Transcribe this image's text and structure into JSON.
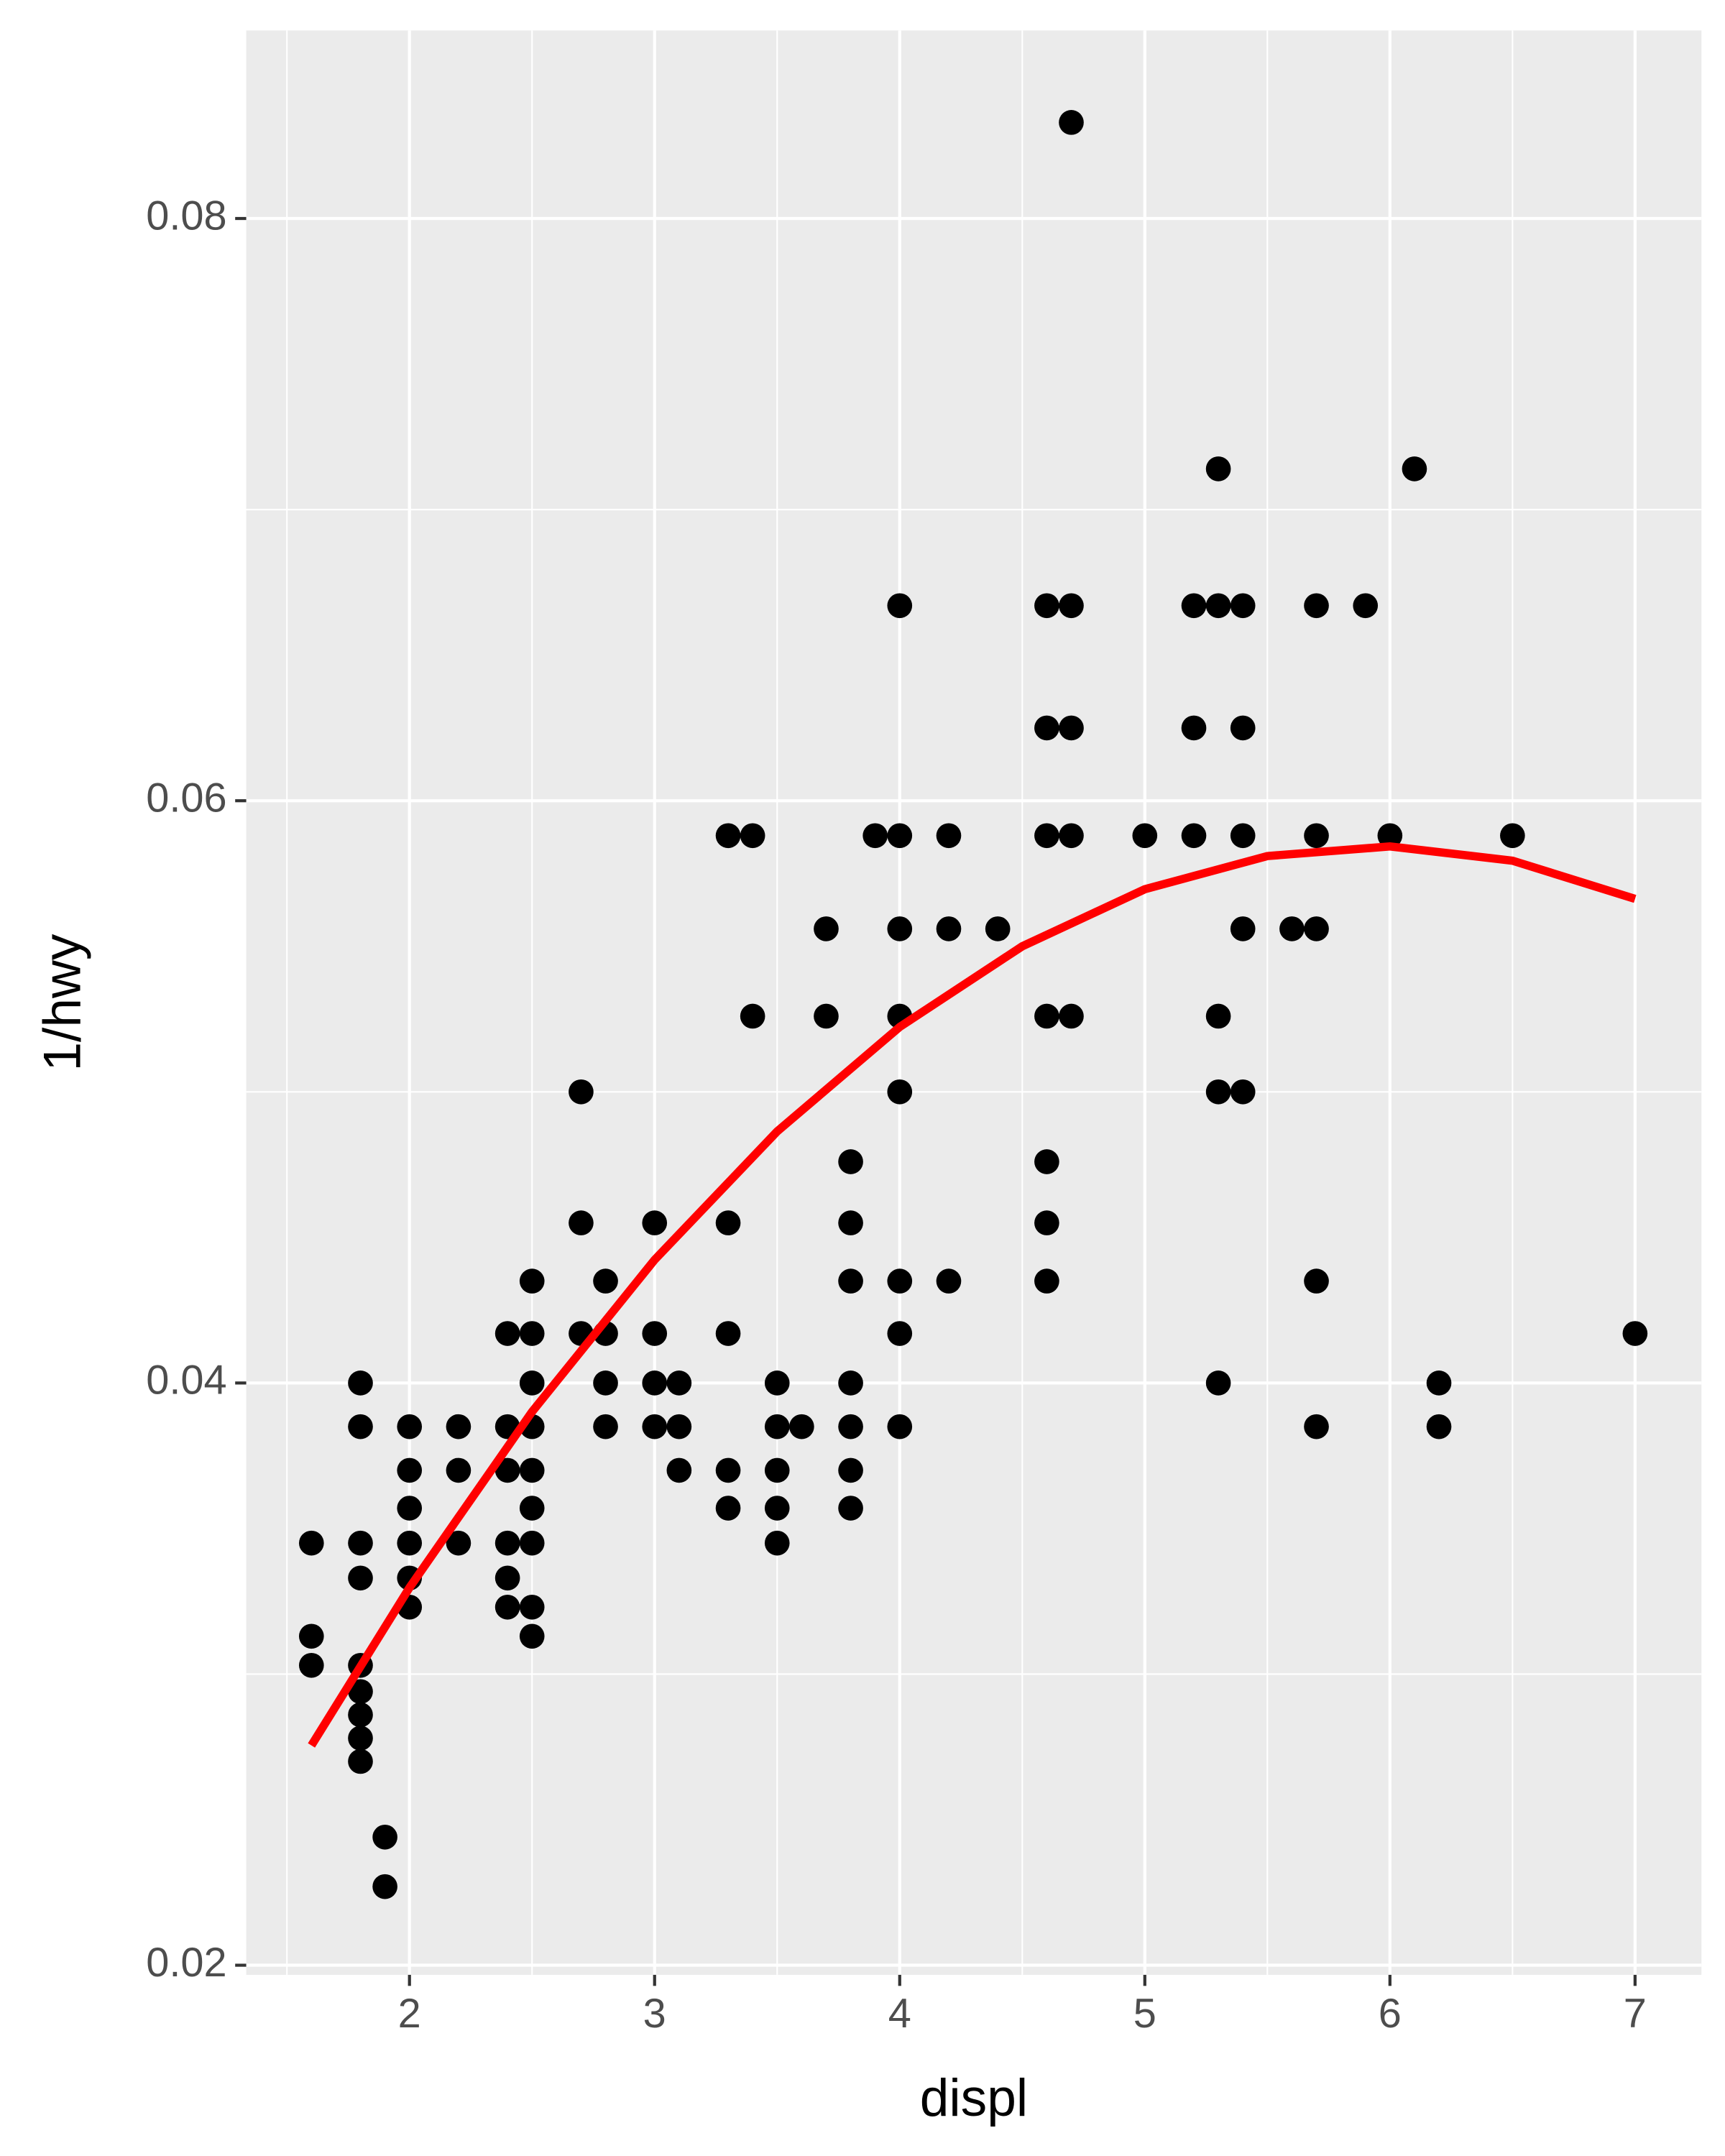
{
  "chart_data": {
    "type": "scatter",
    "x_label": "displ",
    "y_label": "1/hwy",
    "xlim": [
      1.334,
      7.271
    ],
    "ylim": [
      0.01967,
      0.08646
    ],
    "xticks": [
      2,
      3,
      4,
      5,
      6,
      7
    ],
    "yticks": [
      0.02,
      0.04,
      0.06,
      0.08
    ],
    "x_minor_ticks": [
      1.5,
      2.5,
      3.5,
      4.5,
      5.5,
      6.5
    ],
    "y_minor_ticks": [
      0.03,
      0.05,
      0.07
    ],
    "grid": true,
    "series": [
      {
        "color": "#000000",
        "x": [
          4.7,
          5.3,
          6.1,
          4.0,
          4.6,
          4.7,
          5.2,
          5.3,
          5.4,
          5.7,
          5.9,
          4.6,
          4.7,
          5.2,
          5.4,
          3.3,
          3.4,
          3.9,
          4.0,
          4.2,
          4.6,
          4.7,
          5.0,
          5.2,
          5.4,
          5.7,
          6.0,
          6.5,
          3.7,
          4.0,
          4.2,
          4.4,
          5.4,
          5.6,
          5.7,
          3.4,
          3.7,
          4.0,
          4.6,
          4.7,
          5.3,
          2.7,
          4.0,
          5.3,
          5.4,
          3.8,
          4.6,
          2.7,
          3.0,
          3.3,
          3.8,
          4.6,
          2.5,
          2.8,
          3.8,
          4.0,
          4.2,
          4.6,
          5.7,
          2.4,
          2.5,
          2.7,
          2.8,
          3.0,
          3.3,
          4.0,
          7.0,
          1.8,
          2.5,
          2.8,
          3.0,
          3.1,
          3.5,
          3.8,
          5.3,
          6.2,
          1.8,
          2.0,
          2.2,
          2.4,
          2.5,
          2.8,
          3.0,
          3.1,
          3.5,
          3.6,
          3.8,
          4.0,
          5.7,
          6.2,
          2.0,
          2.2,
          2.4,
          2.5,
          3.1,
          3.3,
          3.5,
          3.8,
          2.0,
          2.5,
          3.3,
          3.5,
          3.8,
          1.6,
          1.8,
          2.0,
          2.2,
          2.4,
          2.5,
          3.5,
          1.8,
          2.0,
          2.4,
          2.0,
          2.4,
          2.5,
          1.6,
          2.5,
          1.6,
          1.8,
          1.8,
          1.8,
          1.8,
          1.8,
          1.9,
          1.9
        ],
        "values": [
          0.0833,
          0.0714,
          0.0714,
          0.0667,
          0.0667,
          0.0667,
          0.0667,
          0.0667,
          0.0667,
          0.0667,
          0.0667,
          0.0625,
          0.0625,
          0.0625,
          0.0625,
          0.0588,
          0.0588,
          0.0588,
          0.0588,
          0.0588,
          0.0588,
          0.0588,
          0.0588,
          0.0588,
          0.0588,
          0.0588,
          0.0588,
          0.0588,
          0.0556,
          0.0556,
          0.0556,
          0.0556,
          0.0556,
          0.0556,
          0.0556,
          0.0526,
          0.0526,
          0.0526,
          0.0526,
          0.0526,
          0.0526,
          0.05,
          0.05,
          0.05,
          0.05,
          0.0476,
          0.0476,
          0.0455,
          0.0455,
          0.0455,
          0.0455,
          0.0455,
          0.0435,
          0.0435,
          0.0435,
          0.0435,
          0.0435,
          0.0435,
          0.0435,
          0.0417,
          0.0417,
          0.0417,
          0.0417,
          0.0417,
          0.0417,
          0.0417,
          0.0417,
          0.04,
          0.04,
          0.04,
          0.04,
          0.04,
          0.04,
          0.04,
          0.04,
          0.04,
          0.0385,
          0.0385,
          0.0385,
          0.0385,
          0.0385,
          0.0385,
          0.0385,
          0.0385,
          0.0385,
          0.0385,
          0.0385,
          0.0385,
          0.0385,
          0.0385,
          0.037,
          0.037,
          0.037,
          0.037,
          0.037,
          0.037,
          0.037,
          0.037,
          0.0357,
          0.0357,
          0.0357,
          0.0357,
          0.0357,
          0.0345,
          0.0345,
          0.0345,
          0.0345,
          0.0345,
          0.0345,
          0.0345,
          0.0333,
          0.0333,
          0.0333,
          0.0323,
          0.0323,
          0.0323,
          0.0313,
          0.0313,
          0.0303,
          0.0303,
          0.0294,
          0.0286,
          0.0278,
          0.027,
          0.0244,
          0.0227
        ]
      }
    ],
    "fit": {
      "color": "#ff0000",
      "x": [
        1.6,
        2.0,
        2.5,
        3.0,
        3.5,
        4.0,
        4.5,
        5.0,
        5.5,
        6.0,
        6.5,
        7.0
      ],
      "values": [
        0.02755,
        0.03297,
        0.03901,
        0.04423,
        0.04864,
        0.05223,
        0.055,
        0.05696,
        0.0581,
        0.05843,
        0.05794,
        0.05663
      ]
    }
  }
}
